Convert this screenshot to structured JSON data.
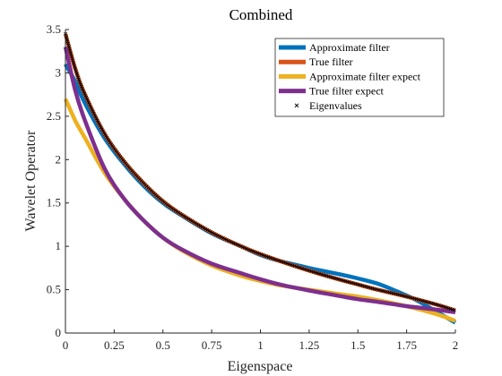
{
  "chart_data": {
    "type": "line",
    "title": "Combined",
    "xlabel": "Eigenspace",
    "ylabel": "Wavelet Operator",
    "xlim": [
      0,
      2
    ],
    "ylim": [
      0,
      3.5
    ],
    "xticks": [
      0,
      0.25,
      0.5,
      0.75,
      1,
      1.25,
      1.5,
      1.75,
      2
    ],
    "xtick_labels": [
      "0",
      "0.25",
      "0.5",
      "0.75",
      "1",
      "1.25",
      "1.5",
      "1.75",
      "2"
    ],
    "yticks": [
      0,
      0.5,
      1,
      1.5,
      2,
      2.5,
      3,
      3.5
    ],
    "ytick_labels": [
      "0",
      "0.5",
      "1",
      "1.5",
      "2",
      "2.5",
      "3",
      "3.5"
    ],
    "legend_position": "top-right",
    "series": [
      {
        "name": "Approximate filter",
        "color": "#0072BD",
        "x": [
          0,
          0.05,
          0.1,
          0.2,
          0.3,
          0.4,
          0.5,
          0.6,
          0.75,
          0.9,
          1.0,
          1.1,
          1.25,
          1.4,
          1.5,
          1.6,
          1.7,
          1.8,
          1.9,
          2.0
        ],
        "y": [
          3.1,
          2.9,
          2.65,
          2.25,
          1.95,
          1.7,
          1.5,
          1.35,
          1.15,
          1.0,
          0.9,
          0.83,
          0.75,
          0.68,
          0.63,
          0.57,
          0.48,
          0.38,
          0.25,
          0.12
        ]
      },
      {
        "name": "True filter",
        "color": "#D95319",
        "x": [
          0,
          0.05,
          0.1,
          0.2,
          0.3,
          0.4,
          0.5,
          0.6,
          0.75,
          0.9,
          1.0,
          1.1,
          1.25,
          1.4,
          1.5,
          1.6,
          1.75,
          1.9,
          2.0
        ],
        "y": [
          3.45,
          3.05,
          2.75,
          2.3,
          1.98,
          1.73,
          1.52,
          1.36,
          1.16,
          1.0,
          0.91,
          0.83,
          0.72,
          0.62,
          0.56,
          0.5,
          0.42,
          0.33,
          0.26
        ]
      },
      {
        "name": "Approximate filter expect",
        "color": "#EDB120",
        "x": [
          0,
          0.05,
          0.1,
          0.2,
          0.3,
          0.4,
          0.5,
          0.6,
          0.75,
          0.9,
          1.0,
          1.1,
          1.25,
          1.4,
          1.5,
          1.6,
          1.75,
          1.9,
          2.0
        ],
        "y": [
          2.7,
          2.45,
          2.25,
          1.85,
          1.55,
          1.3,
          1.1,
          0.95,
          0.78,
          0.66,
          0.6,
          0.55,
          0.5,
          0.45,
          0.42,
          0.38,
          0.31,
          0.22,
          0.14
        ]
      },
      {
        "name": "True filter expect",
        "color": "#7E2F8E",
        "x": [
          0,
          0.05,
          0.1,
          0.2,
          0.3,
          0.4,
          0.5,
          0.6,
          0.75,
          0.9,
          1.0,
          1.1,
          1.25,
          1.4,
          1.5,
          1.6,
          1.75,
          1.9,
          2.0
        ],
        "y": [
          3.3,
          2.8,
          2.45,
          1.9,
          1.55,
          1.3,
          1.1,
          0.96,
          0.8,
          0.69,
          0.62,
          0.56,
          0.49,
          0.43,
          0.39,
          0.36,
          0.31,
          0.27,
          0.24
        ]
      },
      {
        "name": "Eigenvalues",
        "color": "#000000",
        "marker": "x",
        "x": [
          0,
          0.05,
          0.1,
          0.2,
          0.3,
          0.4,
          0.5,
          0.6,
          0.75,
          0.9,
          1.0,
          1.1,
          1.25,
          1.4,
          1.5,
          1.6,
          1.75,
          1.9,
          2.0
        ],
        "y": [
          3.45,
          3.05,
          2.75,
          2.3,
          1.98,
          1.73,
          1.52,
          1.36,
          1.16,
          1.0,
          0.91,
          0.83,
          0.72,
          0.62,
          0.56,
          0.5,
          0.42,
          0.33,
          0.26
        ]
      }
    ]
  }
}
